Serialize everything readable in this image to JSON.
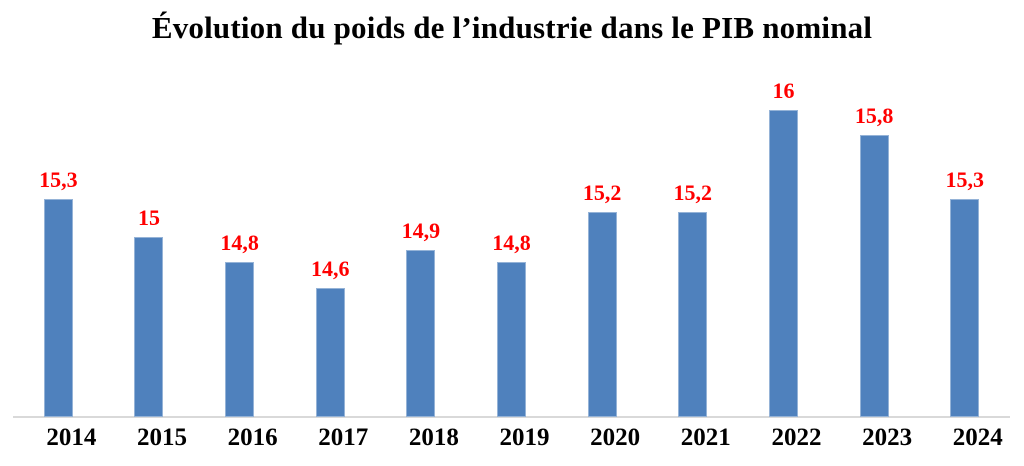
{
  "chart_data": {
    "type": "bar",
    "title": "Évolution du poids de l’industrie dans le PIB nominal",
    "categories": [
      "2014",
      "2015",
      "2016",
      "2017",
      "2018",
      "2019",
      "2020",
      "2021",
      "2022",
      "2023",
      "2024"
    ],
    "values": [
      15.3,
      15,
      14.8,
      14.6,
      14.9,
      14.8,
      15.2,
      15.2,
      16,
      15.8,
      15.3
    ],
    "value_labels": [
      "15,3",
      "15",
      "14,8",
      "14,6",
      "14,9",
      "14,8",
      "15,2",
      "15,2",
      "16",
      "15,8",
      "15,3"
    ],
    "xlabel": "",
    "ylabel": "",
    "ylim": [
      13.6,
      16
    ],
    "grid": false,
    "legend": false,
    "value_label_position": "above-bar",
    "colors": {
      "bar_fill": "#4f81bd",
      "bar_border": "#95b3d7",
      "value_label": "#ff0000",
      "axis_line": "#d9d9d9",
      "text": "#000000",
      "background": "#ffffff"
    }
  }
}
